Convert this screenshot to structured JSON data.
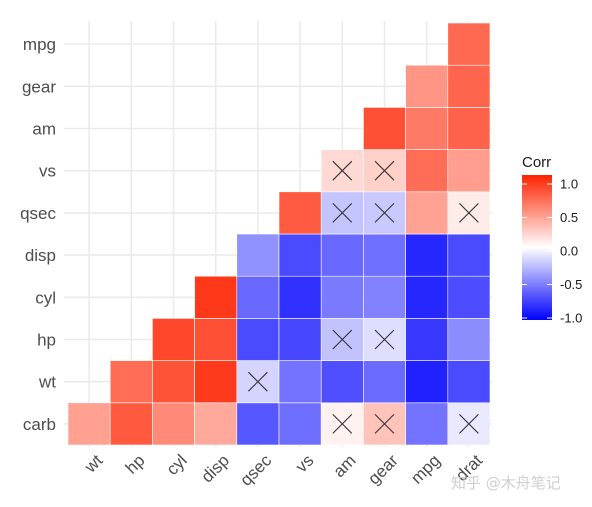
{
  "chart_data": {
    "type": "heatmap",
    "x_labels": [
      "wt",
      "hp",
      "cyl",
      "disp",
      "qsec",
      "vs",
      "am",
      "gear",
      "mpg",
      "drat"
    ],
    "y_labels": [
      "carb",
      "wt",
      "hp",
      "cyl",
      "disp",
      "qsec",
      "vs",
      "am",
      "gear",
      "mpg"
    ],
    "legend": {
      "title": "Corr",
      "ticks": [
        "1.0",
        "0.5",
        "0.0",
        "-0.5",
        "-1.0"
      ],
      "range": [
        -1,
        1
      ],
      "colors": {
        "neg": "#0000ff",
        "mid": "#ffffff",
        "pos": "#ff2200"
      },
      "placement": "right"
    },
    "cells": [
      {
        "row": "carb",
        "col": "wt",
        "value": 0.43,
        "insignificant": false
      },
      {
        "row": "carb",
        "col": "hp",
        "value": 0.75,
        "insignificant": false
      },
      {
        "row": "carb",
        "col": "cyl",
        "value": 0.53,
        "insignificant": false
      },
      {
        "row": "carb",
        "col": "disp",
        "value": 0.39,
        "insignificant": false
      },
      {
        "row": "carb",
        "col": "qsec",
        "value": -0.66,
        "insignificant": false
      },
      {
        "row": "carb",
        "col": "vs",
        "value": -0.57,
        "insignificant": false
      },
      {
        "row": "carb",
        "col": "am",
        "value": 0.06,
        "insignificant": true
      },
      {
        "row": "carb",
        "col": "gear",
        "value": 0.27,
        "insignificant": true
      },
      {
        "row": "carb",
        "col": "mpg",
        "value": -0.55,
        "insignificant": false
      },
      {
        "row": "carb",
        "col": "drat",
        "value": -0.09,
        "insignificant": true
      },
      {
        "row": "wt",
        "col": "hp",
        "value": 0.66,
        "insignificant": false
      },
      {
        "row": "wt",
        "col": "cyl",
        "value": 0.78,
        "insignificant": false
      },
      {
        "row": "wt",
        "col": "disp",
        "value": 0.89,
        "insignificant": false
      },
      {
        "row": "wt",
        "col": "qsec",
        "value": -0.17,
        "insignificant": true
      },
      {
        "row": "wt",
        "col": "vs",
        "value": -0.55,
        "insignificant": false
      },
      {
        "row": "wt",
        "col": "am",
        "value": -0.69,
        "insignificant": false
      },
      {
        "row": "wt",
        "col": "gear",
        "value": -0.58,
        "insignificant": false
      },
      {
        "row": "wt",
        "col": "mpg",
        "value": -0.87,
        "insignificant": false
      },
      {
        "row": "wt",
        "col": "drat",
        "value": -0.71,
        "insignificant": false
      },
      {
        "row": "hp",
        "col": "cyl",
        "value": 0.83,
        "insignificant": false
      },
      {
        "row": "hp",
        "col": "disp",
        "value": 0.79,
        "insignificant": false
      },
      {
        "row": "hp",
        "col": "qsec",
        "value": -0.71,
        "insignificant": false
      },
      {
        "row": "hp",
        "col": "vs",
        "value": -0.72,
        "insignificant": false
      },
      {
        "row": "hp",
        "col": "am",
        "value": -0.24,
        "insignificant": true
      },
      {
        "row": "hp",
        "col": "gear",
        "value": -0.13,
        "insignificant": true
      },
      {
        "row": "hp",
        "col": "mpg",
        "value": -0.78,
        "insignificant": false
      },
      {
        "row": "hp",
        "col": "drat",
        "value": -0.45,
        "insignificant": false
      },
      {
        "row": "cyl",
        "col": "disp",
        "value": 0.9,
        "insignificant": false
      },
      {
        "row": "cyl",
        "col": "qsec",
        "value": -0.59,
        "insignificant": false
      },
      {
        "row": "cyl",
        "col": "vs",
        "value": -0.81,
        "insignificant": false
      },
      {
        "row": "cyl",
        "col": "am",
        "value": -0.52,
        "insignificant": false
      },
      {
        "row": "cyl",
        "col": "gear",
        "value": -0.49,
        "insignificant": false
      },
      {
        "row": "cyl",
        "col": "mpg",
        "value": -0.85,
        "insignificant": false
      },
      {
        "row": "cyl",
        "col": "drat",
        "value": -0.7,
        "insignificant": false
      },
      {
        "row": "disp",
        "col": "qsec",
        "value": -0.43,
        "insignificant": false
      },
      {
        "row": "disp",
        "col": "vs",
        "value": -0.71,
        "insignificant": false
      },
      {
        "row": "disp",
        "col": "am",
        "value": -0.59,
        "insignificant": false
      },
      {
        "row": "disp",
        "col": "gear",
        "value": -0.56,
        "insignificant": false
      },
      {
        "row": "disp",
        "col": "mpg",
        "value": -0.85,
        "insignificant": false
      },
      {
        "row": "disp",
        "col": "drat",
        "value": -0.71,
        "insignificant": false
      },
      {
        "row": "qsec",
        "col": "vs",
        "value": 0.74,
        "insignificant": false
      },
      {
        "row": "qsec",
        "col": "am",
        "value": -0.23,
        "insignificant": true
      },
      {
        "row": "qsec",
        "col": "gear",
        "value": -0.21,
        "insignificant": true
      },
      {
        "row": "qsec",
        "col": "mpg",
        "value": 0.42,
        "insignificant": false
      },
      {
        "row": "qsec",
        "col": "drat",
        "value": 0.09,
        "insignificant": true
      },
      {
        "row": "vs",
        "col": "am",
        "value": 0.17,
        "insignificant": true
      },
      {
        "row": "vs",
        "col": "gear",
        "value": 0.21,
        "insignificant": true
      },
      {
        "row": "vs",
        "col": "mpg",
        "value": 0.66,
        "insignificant": false
      },
      {
        "row": "vs",
        "col": "drat",
        "value": 0.44,
        "insignificant": false
      },
      {
        "row": "am",
        "col": "gear",
        "value": 0.79,
        "insignificant": false
      },
      {
        "row": "am",
        "col": "mpg",
        "value": 0.6,
        "insignificant": false
      },
      {
        "row": "am",
        "col": "drat",
        "value": 0.71,
        "insignificant": false
      },
      {
        "row": "gear",
        "col": "mpg",
        "value": 0.48,
        "insignificant": false
      },
      {
        "row": "gear",
        "col": "drat",
        "value": 0.7,
        "insignificant": false
      },
      {
        "row": "mpg",
        "col": "drat",
        "value": 0.68,
        "insignificant": false
      }
    ]
  },
  "watermark": "知乎 @木舟笔记"
}
